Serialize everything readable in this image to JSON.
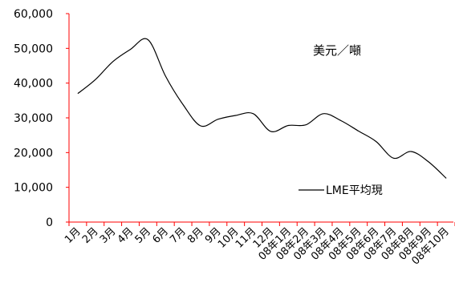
{
  "colors": {
    "axis": "#ff0000",
    "series": "#000000",
    "background": "#ffffff"
  },
  "chart_data": {
    "type": "line",
    "title": "",
    "xlabel": "",
    "ylabel": "",
    "unit_label": "美元／噸",
    "legend_placement": "bottom-right",
    "grid": false,
    "ylim": [
      0,
      60000
    ],
    "yticks": [
      "0",
      "10,000",
      "20,000",
      "30,000",
      "40,000",
      "50,000",
      "60,000"
    ],
    "categories": [
      "1月",
      "2月",
      "3月",
      "4月",
      "5月",
      "6月",
      "7月",
      "8月",
      "9月",
      "10月",
      "11月",
      "12月",
      "08年1月",
      "08年2月",
      "08年3月",
      "08年4月",
      "08年5月",
      "08年6月",
      "08年7月",
      "08年8月",
      "08年9月",
      "08年10月"
    ],
    "series": [
      {
        "name": "LME平均現",
        "values": [
          37000,
          41000,
          46200,
          49700,
          52500,
          42000,
          33800,
          27700,
          29600,
          30700,
          31200,
          26100,
          27800,
          28000,
          31200,
          29200,
          26200,
          23200,
          18400,
          20300,
          17300,
          12600
        ]
      }
    ]
  }
}
